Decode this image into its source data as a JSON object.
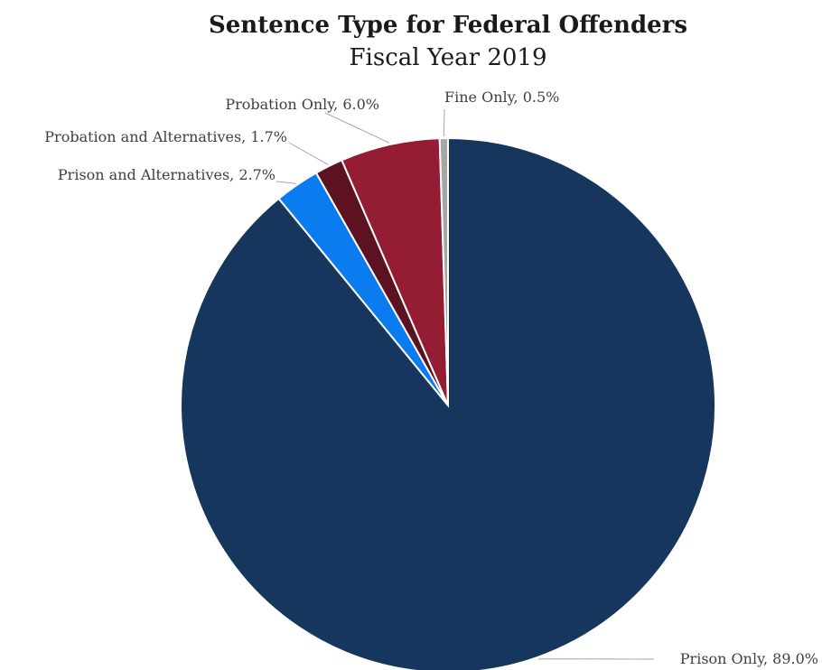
{
  "chart_data": {
    "type": "pie",
    "title": "Sentence Type for Federal Offenders",
    "subtitle": "Fiscal Year 2019",
    "start_angle_deg": 0,
    "direction": "clockwise",
    "slices": [
      {
        "name": "Prison Only",
        "value": 89.0,
        "label": "Prison Only, 89.0%",
        "color": "#17365d"
      },
      {
        "name": "Prison and Alternatives",
        "value": 2.7,
        "label": "Prison and Alternatives, 2.7%",
        "color": "#0a7cf0"
      },
      {
        "name": "Probation and Alternatives",
        "value": 1.7,
        "label": "Probation and Alternatives, 1.7%",
        "color": "#5c1220"
      },
      {
        "name": "Probation Only",
        "value": 6.0,
        "label": "Probation Only, 6.0%",
        "color": "#941c33"
      },
      {
        "name": "Fine Only",
        "value": 0.5,
        "label": "Fine Only, 0.5%",
        "color": "#a6a6a6"
      }
    ]
  }
}
